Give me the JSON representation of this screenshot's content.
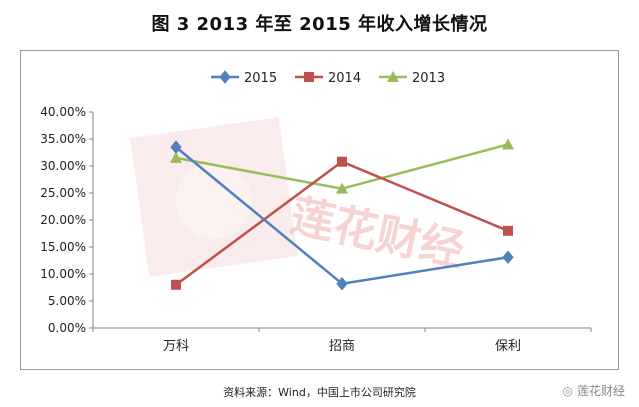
{
  "title": "图 3   2013 年至 2015 年收入增长情况",
  "source": "资料来源：Wind，中国上市公司研究院",
  "watermark_text": "莲花财经",
  "brand_text": "莲花财经",
  "chart_data": {
    "type": "line",
    "categories": [
      "万科",
      "招商",
      "保利"
    ],
    "series": [
      {
        "name": "2015",
        "color": "#4f81bd",
        "marker": "diamond",
        "values": [
          33.5,
          8.2,
          13.1
        ]
      },
      {
        "name": "2014",
        "color": "#c0504d",
        "marker": "square",
        "values": [
          8.0,
          30.8,
          18.0
        ]
      },
      {
        "name": "2013",
        "color": "#9bbb59",
        "marker": "triangle",
        "values": [
          31.5,
          25.8,
          34.0
        ]
      }
    ],
    "yticks": [
      "0.00%",
      "5.00%",
      "10.00%",
      "15.00%",
      "20.00%",
      "25.00%",
      "30.00%",
      "35.00%",
      "40.00%"
    ],
    "ylim": [
      0,
      40
    ],
    "grid": false,
    "legend": "top"
  }
}
